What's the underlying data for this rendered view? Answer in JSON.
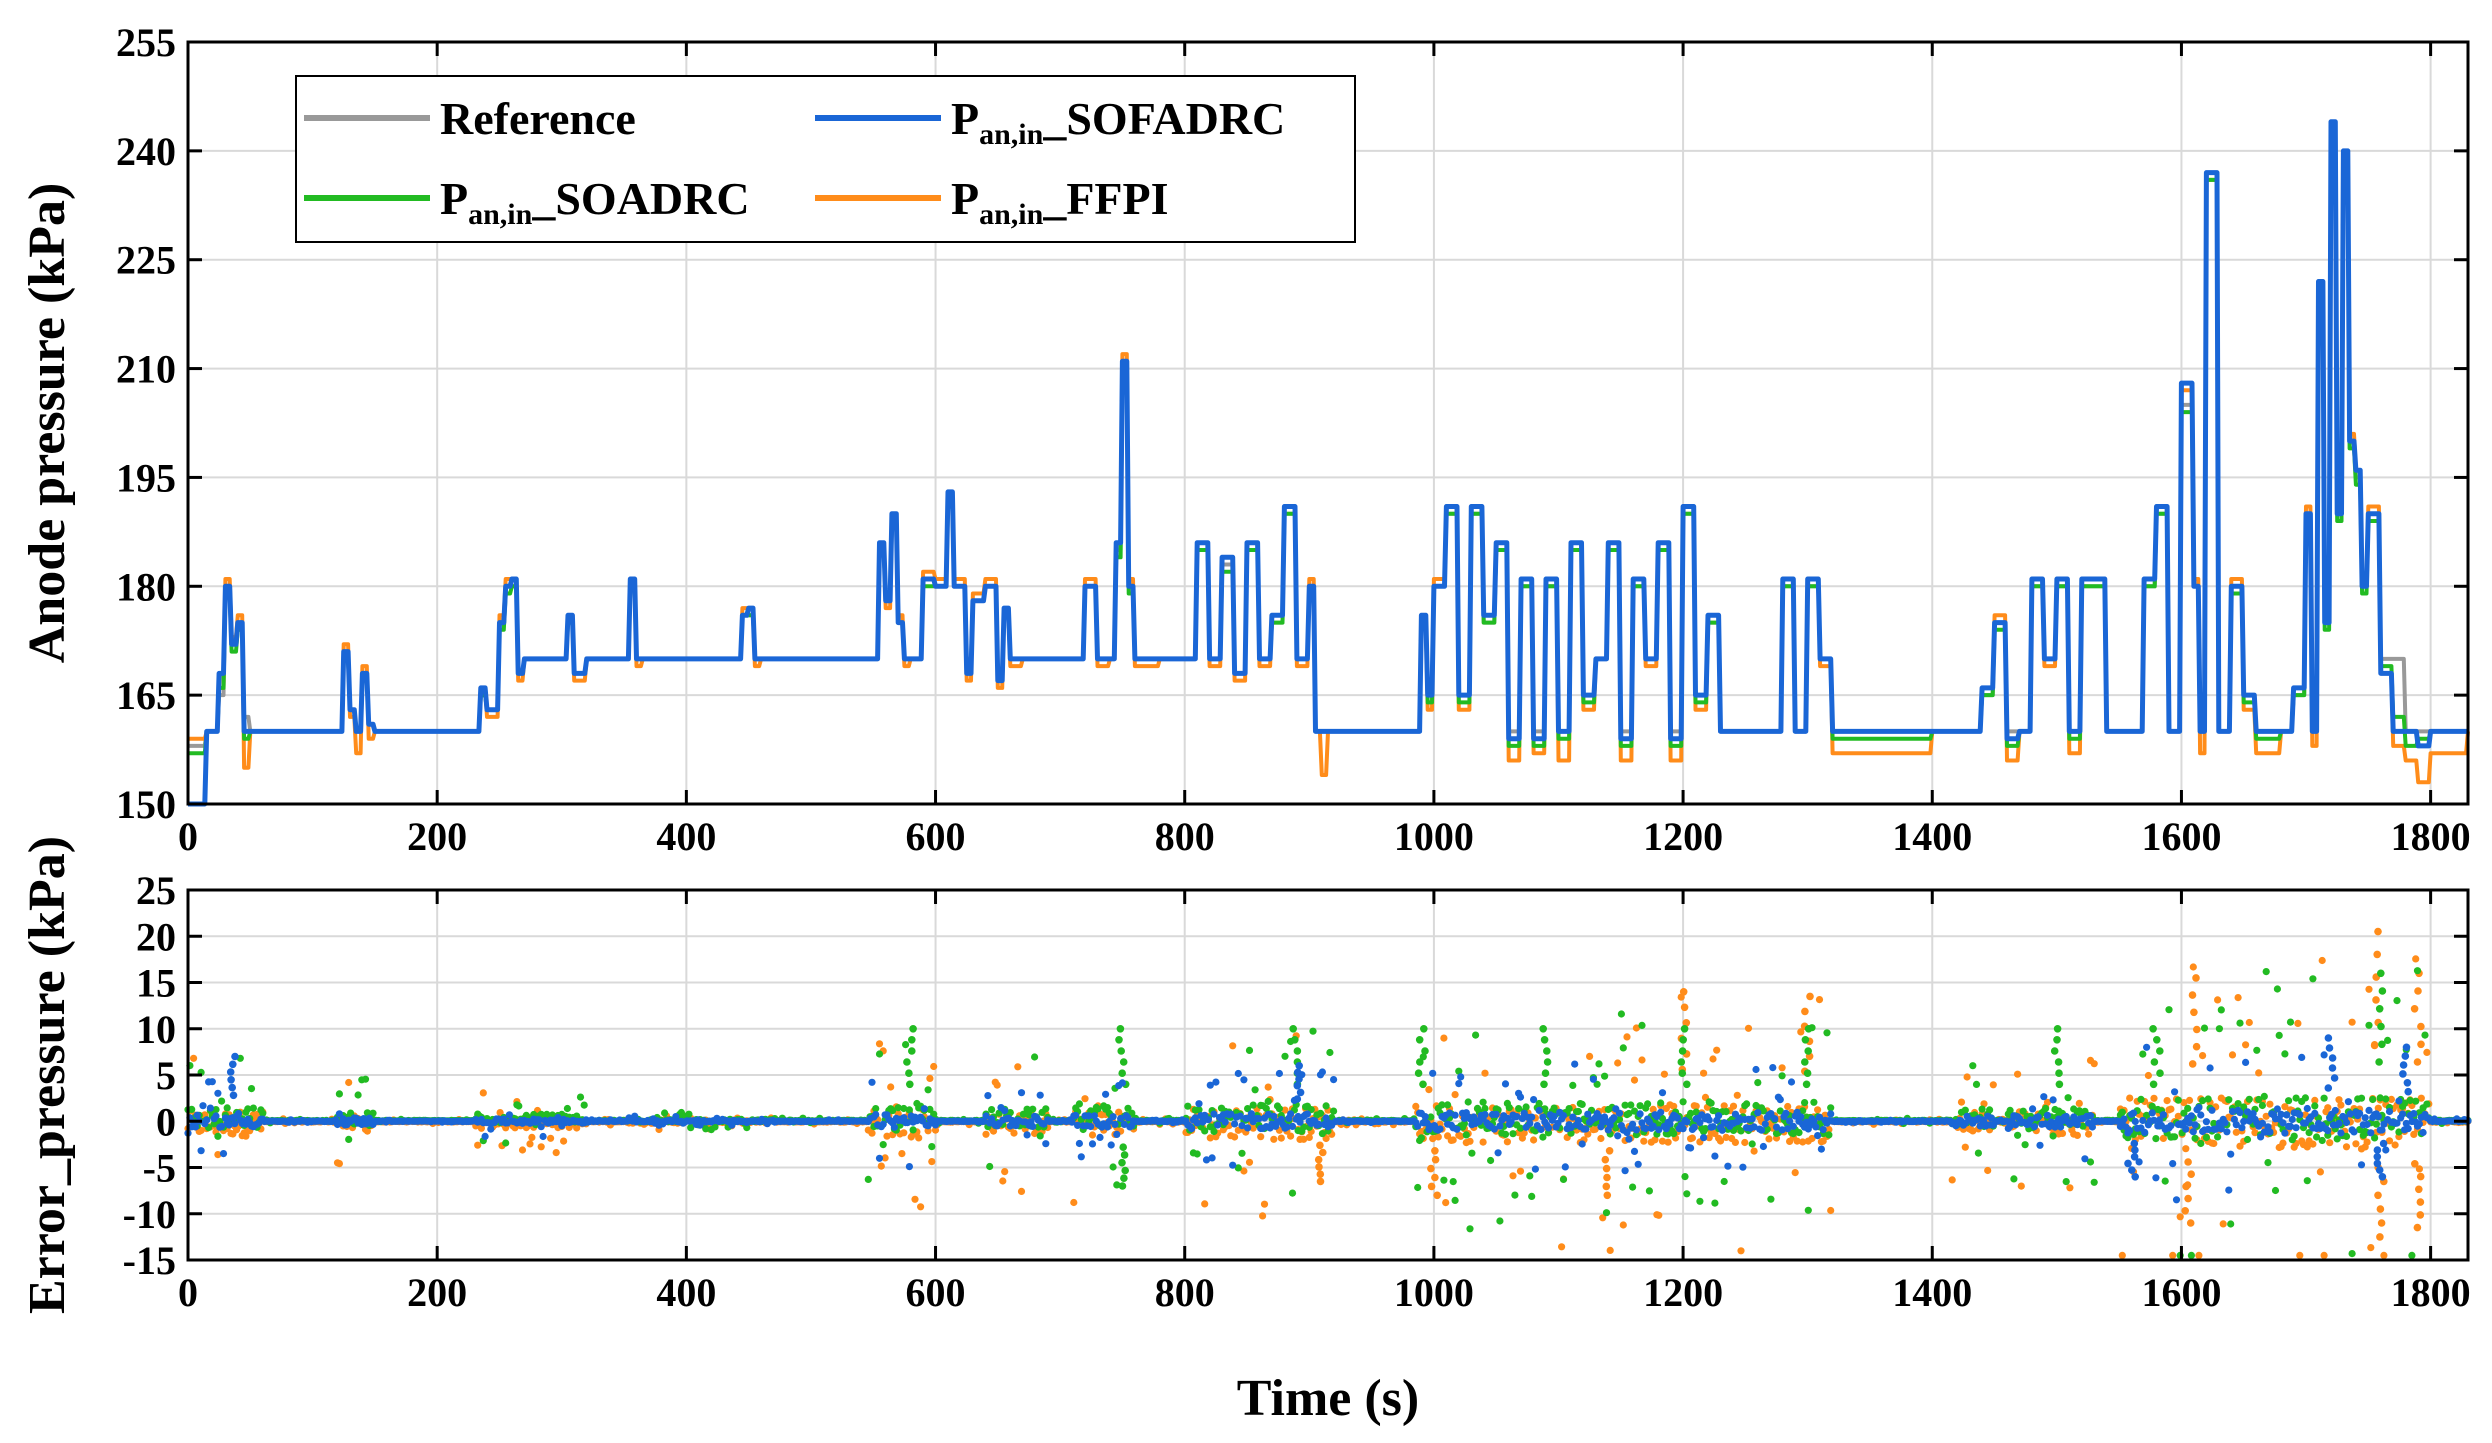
{
  "chart_data": [
    {
      "type": "line",
      "name": "anode-pressure",
      "xlabel": "",
      "ylabel": "Anode pressure (kPa)",
      "xlim": [
        0,
        1830
      ],
      "ylim": [
        150,
        255
      ],
      "xticks": [
        0,
        200,
        400,
        600,
        800,
        1000,
        1200,
        1400,
        1600,
        1800
      ],
      "yticks": [
        150,
        165,
        180,
        195,
        210,
        225,
        240,
        255
      ],
      "grid": true,
      "legend_position": "top-left",
      "legend": [
        {
          "key": "reference",
          "main": "Reference",
          "sub": "",
          "suffix": "",
          "color": "#999999"
        },
        {
          "key": "sofadrc",
          "main": "P",
          "sub": "an,in",
          "suffix": "_SOFADRC",
          "color": "#1a66d6"
        },
        {
          "key": "soadrc",
          "main": "P",
          "sub": "an,in",
          "suffix": "_SOADRC",
          "color": "#22bb22"
        },
        {
          "key": "ffpi",
          "main": "P",
          "sub": "an,in",
          "suffix": "_FFPI",
          "color": "#ff8c1a"
        }
      ],
      "x": [
        0,
        15,
        25,
        30,
        35,
        40,
        45,
        50,
        55,
        70,
        100,
        120,
        125,
        130,
        135,
        140,
        145,
        150,
        200,
        230,
        235,
        240,
        250,
        255,
        260,
        265,
        270,
        280,
        300,
        305,
        310,
        320,
        350,
        355,
        360,
        365,
        400,
        440,
        445,
        450,
        455,
        460,
        470,
        500,
        540,
        550,
        555,
        560,
        565,
        570,
        575,
        580,
        585,
        590,
        600,
        610,
        615,
        620,
        625,
        630,
        640,
        650,
        655,
        660,
        670,
        680,
        700,
        710,
        720,
        730,
        740,
        745,
        750,
        755,
        760,
        780,
        800,
        810,
        820,
        830,
        840,
        850,
        860,
        870,
        880,
        890,
        900,
        905,
        910,
        915,
        920,
        960,
        985,
        990,
        995,
        1000,
        1010,
        1020,
        1030,
        1040,
        1050,
        1060,
        1070,
        1080,
        1090,
        1100,
        1110,
        1120,
        1130,
        1140,
        1150,
        1160,
        1170,
        1180,
        1190,
        1200,
        1210,
        1220,
        1230,
        1250,
        1270,
        1280,
        1290,
        1300,
        1310,
        1320,
        1400,
        1420,
        1430,
        1440,
        1450,
        1460,
        1470,
        1480,
        1490,
        1500,
        1510,
        1520,
        1540,
        1550,
        1560,
        1570,
        1580,
        1590,
        1600,
        1610,
        1615,
        1620,
        1630,
        1640,
        1650,
        1660,
        1680,
        1690,
        1700,
        1705,
        1710,
        1715,
        1720,
        1725,
        1730,
        1735,
        1740,
        1745,
        1750,
        1760,
        1770,
        1780,
        1790,
        1800,
        1830
      ],
      "series": [
        {
          "key": "reference",
          "values": [
            158,
            160,
            165,
            180,
            172,
            175,
            162,
            160,
            160,
            160,
            160,
            160,
            170,
            163,
            160,
            168,
            161,
            160,
            160,
            160,
            165,
            163,
            175,
            180,
            180,
            168,
            170,
            170,
            170,
            176,
            168,
            170,
            170,
            180,
            170,
            170,
            170,
            170,
            176,
            176,
            170,
            170,
            170,
            170,
            170,
            170,
            185,
            178,
            188,
            175,
            170,
            170,
            170,
            181,
            180,
            192,
            180,
            180,
            170,
            178,
            180,
            168,
            176,
            170,
            170,
            170,
            170,
            170,
            180,
            170,
            170,
            185,
            210,
            180,
            170,
            170,
            170,
            185,
            170,
            183,
            168,
            185,
            170,
            175,
            190,
            170,
            180,
            160,
            160,
            160,
            160,
            160,
            160,
            175,
            165,
            180,
            190,
            165,
            190,
            175,
            185,
            160,
            180,
            160,
            180,
            160,
            185,
            165,
            170,
            185,
            160,
            180,
            170,
            185,
            160,
            190,
            165,
            175,
            160,
            160,
            160,
            180,
            160,
            180,
            170,
            160,
            160,
            160,
            160,
            165,
            175,
            160,
            160,
            180,
            170,
            180,
            160,
            180,
            160,
            160,
            160,
            180,
            190,
            160,
            205,
            180,
            160,
            237,
            160,
            180,
            165,
            160,
            160,
            165,
            190,
            160,
            220,
            175,
            243,
            190,
            238,
            200,
            195,
            180,
            190,
            170,
            170,
            160,
            160,
            160,
            160
          ]
        },
        {
          "key": "sofadrc",
          "values": [
            150,
            160,
            168,
            180,
            172,
            175,
            160,
            160,
            160,
            160,
            160,
            160,
            171,
            163,
            160,
            168,
            161,
            160,
            160,
            160,
            166,
            163,
            175,
            180,
            181,
            168,
            170,
            170,
            170,
            176,
            168,
            170,
            170,
            181,
            170,
            170,
            170,
            170,
            176,
            177,
            170,
            170,
            170,
            170,
            170,
            170,
            186,
            178,
            190,
            175,
            170,
            170,
            170,
            181,
            180,
            193,
            180,
            180,
            168,
            178,
            180,
            167,
            177,
            170,
            170,
            170,
            170,
            170,
            180,
            170,
            170,
            186,
            211,
            180,
            170,
            170,
            170,
            186,
            170,
            184,
            168,
            186,
            170,
            176,
            191,
            170,
            180,
            160,
            160,
            160,
            160,
            160,
            160,
            176,
            165,
            180,
            191,
            165,
            191,
            176,
            186,
            159,
            181,
            159,
            181,
            160,
            186,
            165,
            170,
            186,
            159,
            181,
            170,
            186,
            159,
            191,
            165,
            176,
            160,
            160,
            160,
            181,
            160,
            181,
            170,
            160,
            160,
            160,
            160,
            166,
            175,
            159,
            160,
            181,
            170,
            181,
            160,
            181,
            160,
            160,
            160,
            181,
            191,
            160,
            208,
            180,
            160,
            237,
            160,
            180,
            165,
            160,
            160,
            166,
            190,
            160,
            222,
            175,
            244,
            190,
            240,
            200,
            196,
            180,
            190,
            168,
            160,
            160,
            158,
            160,
            160
          ]
        },
        {
          "key": "soadrc",
          "values": [
            157,
            160,
            166,
            179,
            171,
            174,
            159,
            160,
            160,
            160,
            160,
            160,
            170,
            163,
            160,
            167,
            161,
            160,
            160,
            160,
            165,
            163,
            174,
            179,
            180,
            168,
            170,
            170,
            170,
            175,
            168,
            170,
            170,
            180,
            170,
            170,
            170,
            170,
            176,
            176,
            170,
            170,
            170,
            170,
            170,
            170,
            185,
            178,
            189,
            175,
            170,
            170,
            170,
            180,
            180,
            191,
            180,
            180,
            168,
            178,
            180,
            167,
            176,
            170,
            170,
            170,
            170,
            170,
            180,
            170,
            170,
            184,
            209,
            179,
            170,
            170,
            170,
            185,
            170,
            182,
            168,
            185,
            170,
            175,
            190,
            170,
            180,
            160,
            160,
            160,
            160,
            160,
            160,
            175,
            164,
            180,
            190,
            164,
            190,
            175,
            185,
            158,
            180,
            158,
            180,
            159,
            185,
            164,
            170,
            185,
            158,
            180,
            170,
            185,
            158,
            190,
            164,
            175,
            160,
            160,
            160,
            180,
            160,
            180,
            170,
            159,
            160,
            160,
            160,
            165,
            174,
            158,
            160,
            180,
            170,
            180,
            159,
            180,
            160,
            160,
            160,
            180,
            190,
            160,
            204,
            180,
            160,
            236,
            160,
            179,
            164,
            159,
            160,
            165,
            189,
            160,
            219,
            174,
            242,
            189,
            236,
            199,
            194,
            179,
            189,
            169,
            162,
            158,
            159,
            160,
            160
          ]
        },
        {
          "key": "ffpi",
          "values": [
            159,
            160,
            166,
            181,
            173,
            176,
            155,
            160,
            160,
            160,
            160,
            160,
            172,
            162,
            157,
            169,
            159,
            160,
            160,
            160,
            166,
            162,
            176,
            181,
            181,
            167,
            170,
            170,
            170,
            176,
            167,
            170,
            170,
            181,
            169,
            170,
            170,
            170,
            177,
            177,
            169,
            170,
            170,
            170,
            170,
            170,
            186,
            177,
            190,
            176,
            169,
            170,
            170,
            182,
            181,
            193,
            181,
            181,
            167,
            179,
            181,
            166,
            177,
            169,
            170,
            170,
            170,
            170,
            181,
            169,
            170,
            186,
            212,
            181,
            169,
            170,
            170,
            186,
            169,
            184,
            167,
            186,
            169,
            176,
            191,
            169,
            181,
            160,
            154,
            160,
            160,
            160,
            160,
            176,
            163,
            181,
            191,
            163,
            191,
            176,
            186,
            156,
            181,
            157,
            181,
            156,
            186,
            163,
            170,
            186,
            156,
            181,
            169,
            186,
            156,
            191,
            163,
            176,
            160,
            160,
            160,
            181,
            160,
            181,
            169,
            157,
            160,
            160,
            160,
            166,
            176,
            156,
            160,
            181,
            169,
            181,
            157,
            181,
            160,
            160,
            160,
            181,
            191,
            160,
            207,
            181,
            157,
            236,
            160,
            181,
            163,
            157,
            160,
            166,
            191,
            158,
            221,
            176,
            242,
            191,
            237,
            201,
            196,
            181,
            191,
            168,
            158,
            156,
            153,
            157,
            160
          ]
        }
      ]
    },
    {
      "type": "scatter",
      "name": "error-pressure",
      "xlabel": "Time (s)",
      "ylabel": "Error_pressure (kPa)",
      "xlim": [
        0,
        1830
      ],
      "ylim": [
        -15,
        25
      ],
      "xticks": [
        0,
        200,
        400,
        600,
        800,
        1000,
        1200,
        1400,
        1600,
        1800
      ],
      "yticks": [
        -15,
        -10,
        -5,
        0,
        5,
        10,
        15,
        20,
        25
      ],
      "grid": true,
      "active_regions": [
        [
          0,
          60,
          8
        ],
        [
          120,
          150,
          5
        ],
        [
          230,
          320,
          3
        ],
        [
          350,
          470,
          1
        ],
        [
          545,
          600,
          9
        ],
        [
          640,
          690,
          7
        ],
        [
          710,
          760,
          8
        ],
        [
          800,
          920,
          10
        ],
        [
          985,
          1320,
          12
        ],
        [
          1415,
          1450,
          7
        ],
        [
          1460,
          1530,
          8
        ],
        [
          1550,
          1800,
          16
        ]
      ],
      "quiet_regions": [
        [
          150,
          230,
          0.2
        ],
        [
          470,
          545,
          0.3
        ],
        [
          1320,
          1415,
          0.3
        ],
        [
          1800,
          1830,
          0.5
        ]
      ],
      "series": [
        {
          "key": "ffpi",
          "name": "P_an,in_FFPI",
          "color": "#ff8c1a",
          "scale": 1.15,
          "bias": -0.25,
          "peaks": [
            [
              1755,
              20.5
            ],
            [
              1610,
              15.5
            ],
            [
              1790,
              16
            ],
            [
              1200,
              14
            ],
            [
              1300,
              13.5
            ],
            [
              1760,
              -12.5
            ],
            [
              1605,
              -11
            ],
            [
              1790,
              -11.5
            ],
            [
              910,
              -6.5
            ],
            [
              1140,
              -8
            ],
            [
              1000,
              -8
            ]
          ]
        },
        {
          "key": "soadrc",
          "name": "P_an,in_SOADRC",
          "color": "#22bb22",
          "scale": 1.0,
          "bias": 0.3,
          "peaks": [
            [
              580,
              10
            ],
            [
              750,
              10
            ],
            [
              890,
              10
            ],
            [
              990,
              10
            ],
            [
              1090,
              10
            ],
            [
              1200,
              10
            ],
            [
              1300,
              10
            ],
            [
              1500,
              10
            ],
            [
              1580,
              10
            ],
            [
              1760,
              16
            ],
            [
              750,
              -7
            ]
          ]
        },
        {
          "key": "sofadrc",
          "name": "P_an,in_SOFADRC",
          "color": "#1a66d6",
          "scale": 0.55,
          "bias": 0.0,
          "peaks": [
            [
              35,
              7
            ],
            [
              890,
              6
            ],
            [
              1720,
              9
            ],
            [
              1780,
              8
            ],
            [
              1560,
              -6
            ],
            [
              1760,
              -6
            ]
          ]
        }
      ]
    }
  ]
}
